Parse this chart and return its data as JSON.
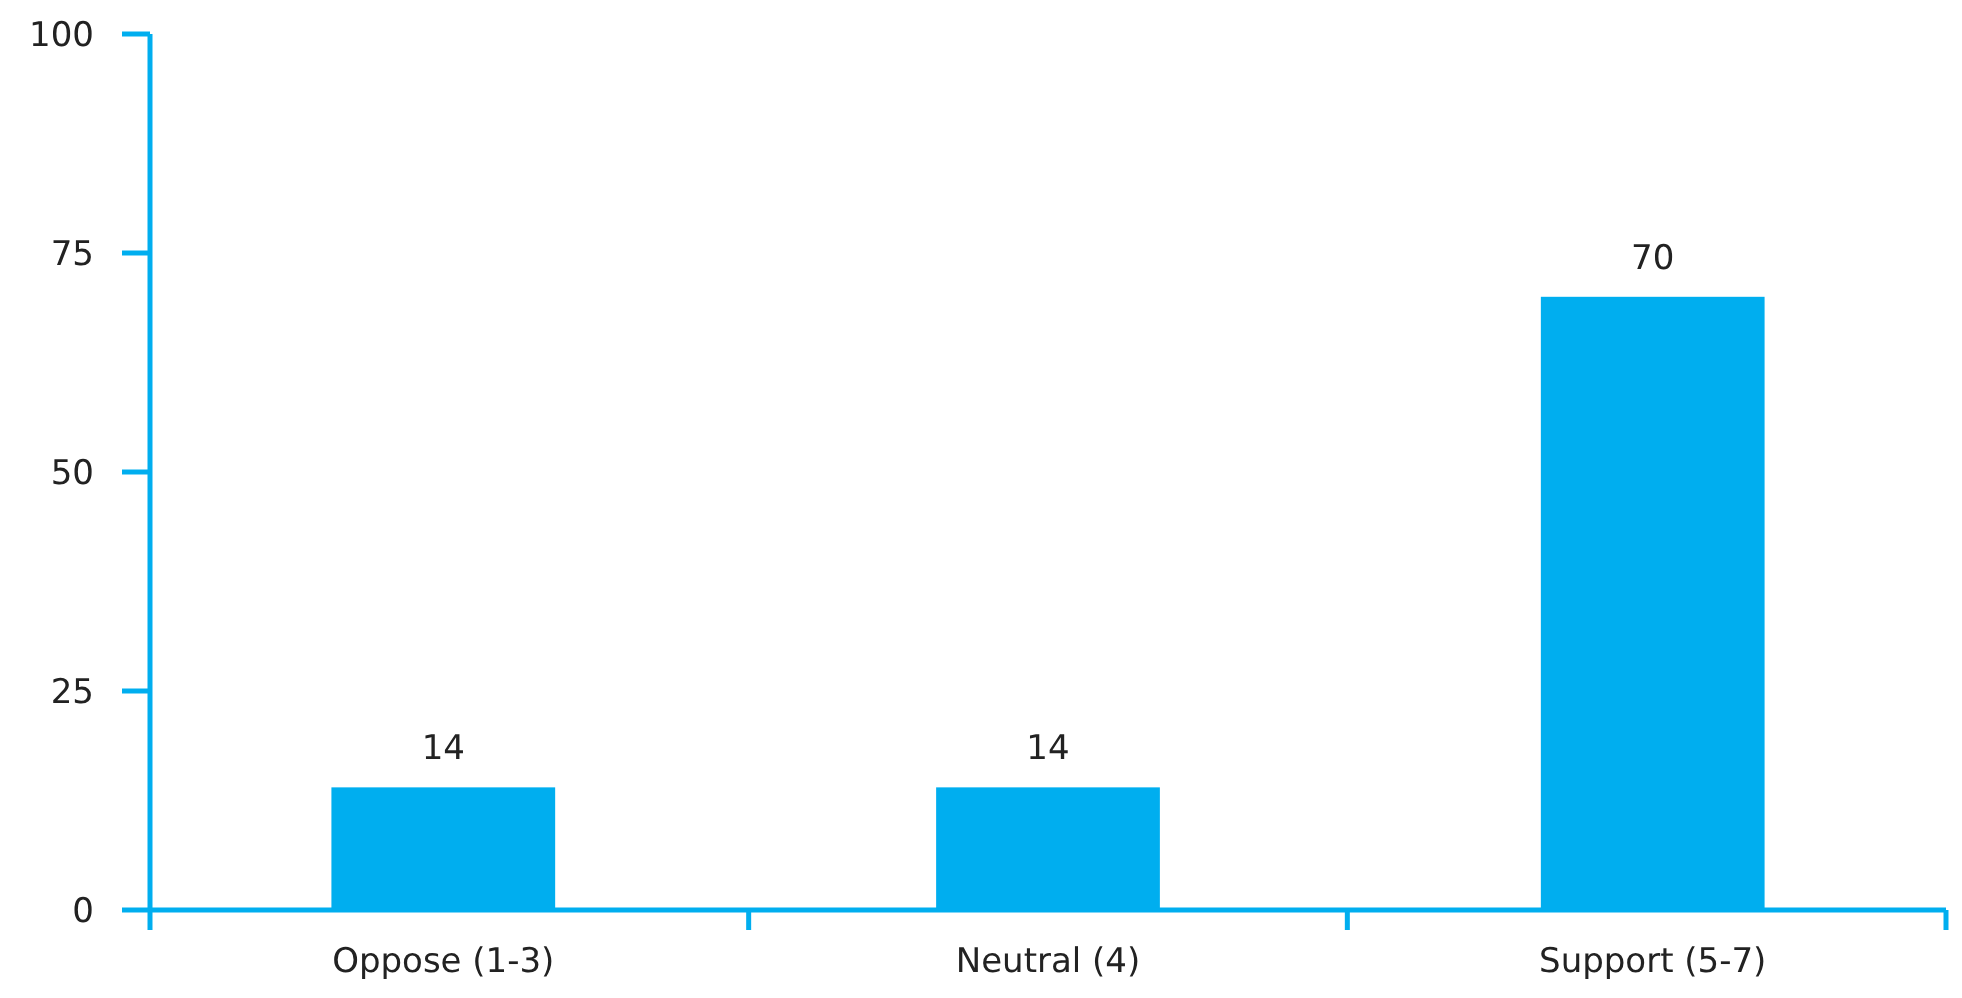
{
  "chart_data": {
    "type": "bar",
    "categories": [
      "Oppose (1-3)",
      "Neutral (4)",
      "Support (5-7)"
    ],
    "values": [
      14,
      14,
      70
    ],
    "color": "#00aeef",
    "ylim": [
      0,
      100
    ],
    "yticks": [
      0,
      25,
      50,
      75,
      100
    ],
    "data_labels": true
  }
}
